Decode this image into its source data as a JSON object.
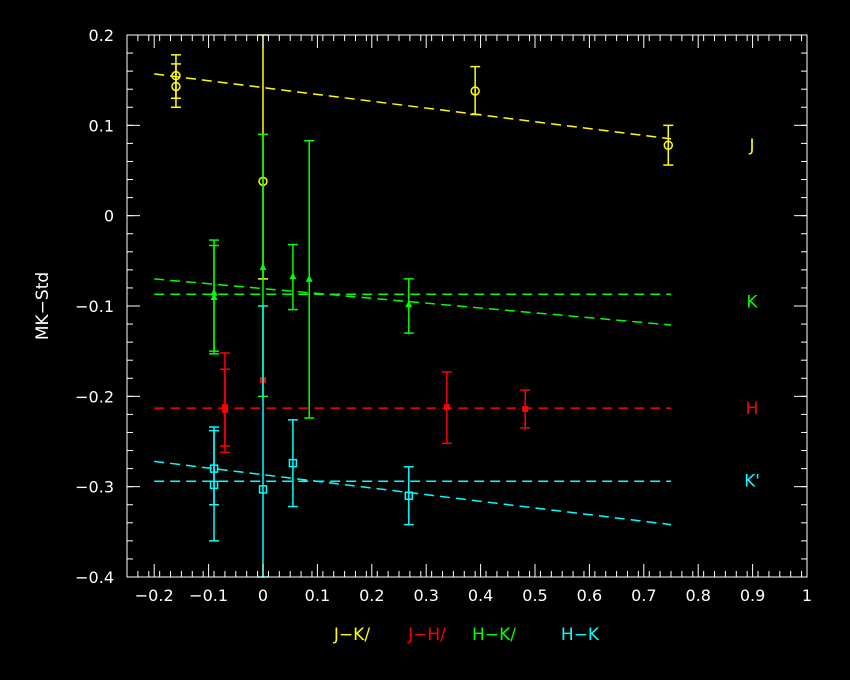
{
  "chart_data": {
    "type": "scatter",
    "xlabel": "",
    "ylabel": "MK−Std",
    "xlim": [
      -0.25,
      1.0
    ],
    "ylim": [
      -0.4,
      0.2
    ],
    "x_ticks": [
      -0.2,
      -0.1,
      0,
      0.1,
      0.2,
      0.3,
      0.4,
      0.5,
      0.6,
      0.7,
      0.8,
      0.9,
      1
    ],
    "x_tick_labels": [
      "−0.2",
      "−0.1",
      "0",
      "0.1",
      "0.2",
      "0.3",
      "0.4",
      "0.5",
      "0.6",
      "0.7",
      "0.8",
      "0.9",
      "1"
    ],
    "y_ticks": [
      -0.4,
      -0.3,
      -0.2,
      -0.1,
      0,
      0.1,
      0.2
    ],
    "y_tick_labels": [
      "−0.4",
      "−0.3",
      "−0.2",
      "−0.1",
      "0",
      "0.1",
      "0.2"
    ],
    "x_minor_step": 0.02,
    "y_minor_step": 0.02,
    "grid": false,
    "legend": [
      {
        "text": "J−K/",
        "color": "#ffff00"
      },
      {
        "text": "J−H/",
        "color": "#ff0000"
      },
      {
        "text": "H−K/",
        "color": "#00ff00"
      },
      {
        "text": "H−K",
        "color": "#00ffff"
      }
    ],
    "series": [
      {
        "name": "J",
        "color": "#ffff00",
        "marker": "circle",
        "points": [
          {
            "x": -0.16,
            "y": 0.155,
            "lo": 0.13,
            "hi": 0.178
          },
          {
            "x": -0.16,
            "y": 0.143,
            "lo": 0.12,
            "hi": 0.168
          },
          {
            "x": 0.39,
            "y": 0.138,
            "lo": 0.112,
            "hi": 0.165
          },
          {
            "x": 0.745,
            "y": 0.078,
            "lo": 0.056,
            "hi": 0.1
          },
          {
            "x": 0.0,
            "y": 0.038,
            "lo": -0.07,
            "hi": 0.2
          }
        ],
        "fits": [
          {
            "x": [
              -0.2,
              0.75
            ],
            "y": [
              0.157,
              0.085
            ]
          }
        ]
      },
      {
        "name": "K",
        "color": "#00ff00",
        "marker": "triangle",
        "points": [
          {
            "x": -0.09,
            "y": -0.09,
            "lo": -0.153,
            "hi": -0.033
          },
          {
            "x": -0.09,
            "y": -0.085,
            "lo": -0.15,
            "hi": -0.027
          },
          {
            "x": 0.0,
            "y": -0.057,
            "lo": -0.2,
            "hi": 0.09
          },
          {
            "x": 0.055,
            "y": -0.067,
            "lo": -0.104,
            "hi": -0.032
          },
          {
            "x": 0.085,
            "y": -0.07,
            "lo": -0.224,
            "hi": 0.083
          },
          {
            "x": 0.268,
            "y": -0.098,
            "lo": -0.13,
            "hi": -0.07
          }
        ],
        "fits": [
          {
            "x": [
              -0.2,
              0.75
            ],
            "y": [
              -0.07,
              -0.121
            ]
          },
          {
            "x": [
              -0.2,
              0.75
            ],
            "y": [
              -0.087,
              -0.087
            ]
          }
        ]
      },
      {
        "name": "H",
        "color": "#ff0000",
        "marker": "square",
        "points": [
          {
            "x": -0.07,
            "y": -0.215,
            "lo": -0.262,
            "hi": -0.17
          },
          {
            "x": -0.07,
            "y": -0.212,
            "lo": -0.255,
            "hi": -0.152
          },
          {
            "x": 0.0,
            "y": -0.182,
            "lo": -0.182,
            "hi": -0.182
          },
          {
            "x": 0.338,
            "y": -0.212,
            "lo": -0.252,
            "hi": -0.173
          },
          {
            "x": 0.482,
            "y": -0.214,
            "lo": -0.235,
            "hi": -0.193
          }
        ],
        "fits": [
          {
            "x": [
              -0.2,
              0.75
            ],
            "y": [
              -0.213,
              -0.213
            ]
          }
        ]
      },
      {
        "name": "K'",
        "color": "#00ffff",
        "marker": "open-square",
        "points": [
          {
            "x": -0.09,
            "y": -0.28,
            "lo": -0.36,
            "hi": -0.234
          },
          {
            "x": -0.09,
            "y": -0.298,
            "lo": -0.32,
            "hi": -0.238
          },
          {
            "x": 0.0,
            "y": -0.303,
            "lo": -0.4,
            "hi": -0.1
          },
          {
            "x": 0.055,
            "y": -0.274,
            "lo": -0.322,
            "hi": -0.226
          },
          {
            "x": 0.268,
            "y": -0.31,
            "lo": -0.342,
            "hi": -0.278
          }
        ],
        "fits": [
          {
            "x": [
              -0.2,
              0.75
            ],
            "y": [
              -0.272,
              -0.342
            ]
          },
          {
            "x": [
              -0.2,
              0.75
            ],
            "y": [
              -0.294,
              -0.294
            ]
          }
        ]
      }
    ]
  }
}
